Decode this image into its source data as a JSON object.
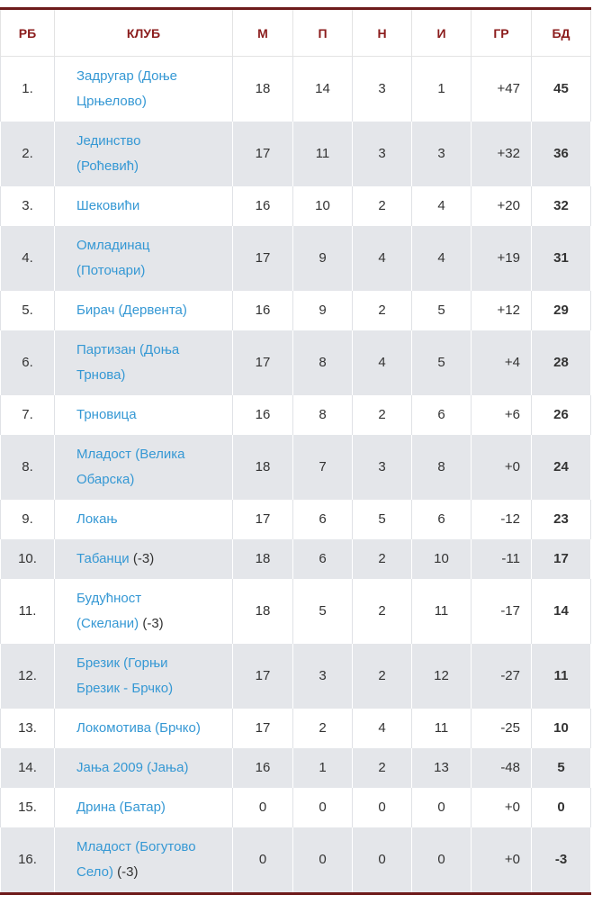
{
  "table": {
    "headers": [
      "РБ",
      "КЛУБ",
      "М",
      "П",
      "Н",
      "И",
      "ГР",
      "БД"
    ],
    "rows": [
      {
        "rank": "1.",
        "club": "Задругар (Доње Црњелово)",
        "played": "18",
        "won": "14",
        "drawn": "3",
        "lost": "1",
        "gd": "+47",
        "pts": "45"
      },
      {
        "rank": "2.",
        "club": "Јединство (Роћевић)",
        "played": "17",
        "won": "11",
        "drawn": "3",
        "lost": "3",
        "gd": "+32",
        "pts": "36"
      },
      {
        "rank": "3.",
        "club": "Шековићи",
        "played": "16",
        "won": "10",
        "drawn": "2",
        "lost": "4",
        "gd": "+20",
        "pts": "32"
      },
      {
        "rank": "4.",
        "club": "Омладинац (Поточари)",
        "played": "17",
        "won": "9",
        "drawn": "4",
        "lost": "4",
        "gd": "+19",
        "pts": "31"
      },
      {
        "rank": "5.",
        "club": "Бирач (Дервента)",
        "played": "16",
        "won": "9",
        "drawn": "2",
        "lost": "5",
        "gd": "+12",
        "pts": "29"
      },
      {
        "rank": "6.",
        "club": "Партизан (Доња Трнова)",
        "played": "17",
        "won": "8",
        "drawn": "4",
        "lost": "5",
        "gd": "+4",
        "pts": "28"
      },
      {
        "rank": "7.",
        "club": "Трновица",
        "played": "16",
        "won": "8",
        "drawn": "2",
        "lost": "6",
        "gd": "+6",
        "pts": "26"
      },
      {
        "rank": "8.",
        "club": "Младост (Велика Обарска)",
        "played": "18",
        "won": "7",
        "drawn": "3",
        "lost": "8",
        "gd": "+0",
        "pts": "24"
      },
      {
        "rank": "9.",
        "club": "Локањ",
        "played": "17",
        "won": "6",
        "drawn": "5",
        "lost": "6",
        "gd": "-12",
        "pts": "23"
      },
      {
        "rank": "10.",
        "club": "Табанци",
        "penalty": "(-3)",
        "played": "18",
        "won": "6",
        "drawn": "2",
        "lost": "10",
        "gd": "-11",
        "pts": "17"
      },
      {
        "rank": "11.",
        "club": "Будућност (Скелани)",
        "penalty": "(-3)",
        "played": "18",
        "won": "5",
        "drawn": "2",
        "lost": "11",
        "gd": "-17",
        "pts": "14"
      },
      {
        "rank": "12.",
        "club": "Брезик (Горњи Брезик - Брчко)",
        "played": "17",
        "won": "3",
        "drawn": "2",
        "lost": "12",
        "gd": "-27",
        "pts": "11"
      },
      {
        "rank": "13.",
        "club": "Локомотива (Брчко)",
        "played": "17",
        "won": "2",
        "drawn": "4",
        "lost": "11",
        "gd": "-25",
        "pts": "10"
      },
      {
        "rank": "14.",
        "club": "Јања 2009 (Јања)",
        "played": "16",
        "won": "1",
        "drawn": "2",
        "lost": "13",
        "gd": "-48",
        "pts": "5"
      },
      {
        "rank": "15.",
        "club": "Дрина (Батар)",
        "played": "0",
        "won": "0",
        "drawn": "0",
        "lost": "0",
        "gd": "+0",
        "pts": "0"
      },
      {
        "rank": "16.",
        "club": "Младост (Богутово Село)",
        "penalty": "(-3)",
        "played": "0",
        "won": "0",
        "drawn": "0",
        "lost": "0",
        "gd": "+0",
        "pts": "-3"
      }
    ]
  }
}
